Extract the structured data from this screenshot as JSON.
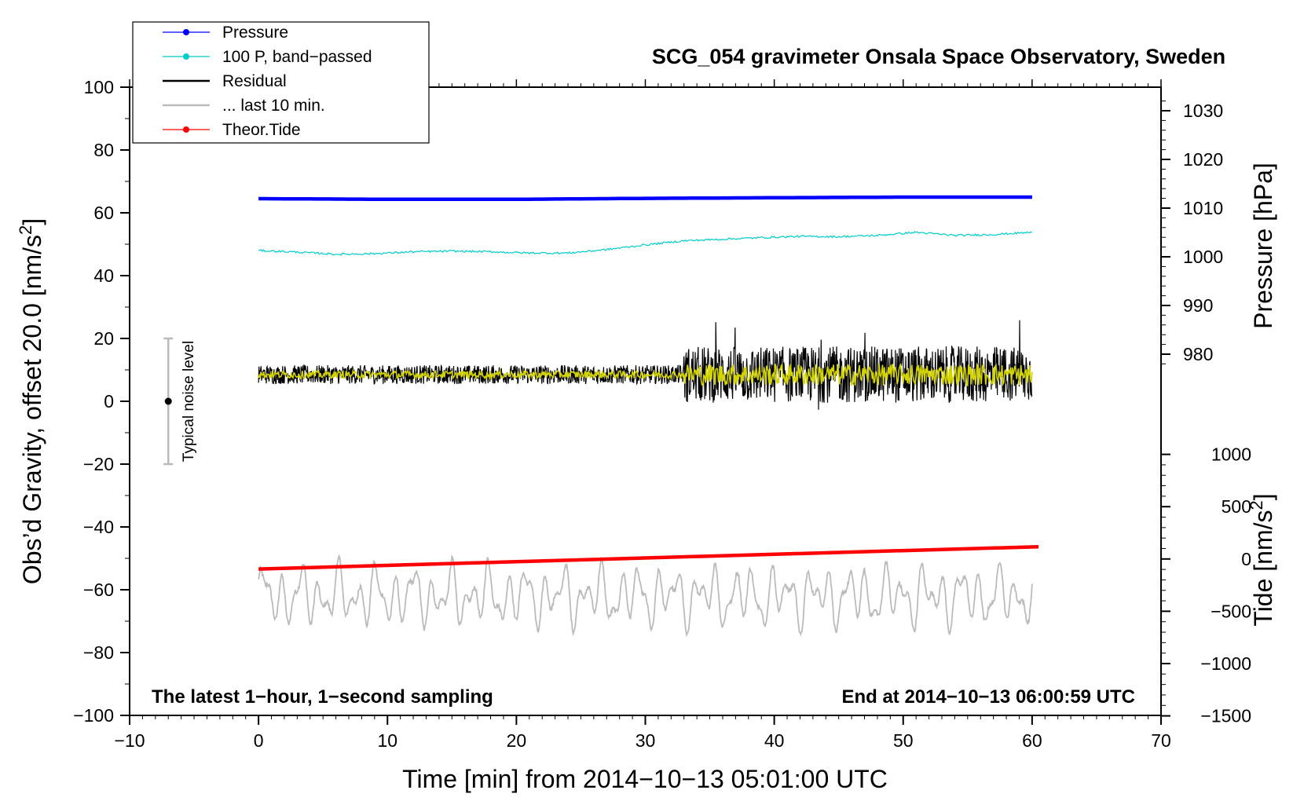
{
  "chart_data": {
    "type": "line",
    "title": "SCG_054 gravimeter Onsala Space Observatory, Sweden",
    "xlabel": "Time [min] from 2014−10−13 05:01:00 UTC",
    "ylabel_left": "Obs’d Gravity, offset 20.0 [nm/s",
    "ylabel_left_sup": "2",
    "ylabel_left_end": "]",
    "ylabel_pressure": "Pressure [hPa]",
    "ylabel_tide": "Tide [nm/s",
    "ylabel_tide_sup": "2",
    "ylabel_tide_end": "]",
    "xlim": [
      -10,
      70
    ],
    "ylim": [
      -100,
      100
    ],
    "x_ticks": [
      "−10",
      "0",
      "10",
      "20",
      "30",
      "40",
      "50",
      "60",
      "70"
    ],
    "x_tick_values": [
      -10,
      0,
      10,
      20,
      30,
      40,
      50,
      60,
      70
    ],
    "y_ticks": [
      "100",
      "80",
      "60",
      "40",
      "20",
      "0",
      "−20",
      "−40",
      "−60",
      "−80",
      "−100"
    ],
    "y_tick_values": [
      100,
      80,
      60,
      40,
      20,
      0,
      -20,
      -40,
      -60,
      -80,
      -100
    ],
    "pressure_axis": {
      "ticks": [
        "1030",
        "1020",
        "1010",
        "1000",
        "990",
        "980"
      ],
      "tick_values": [
        1030,
        1020,
        1010,
        1000,
        990,
        980
      ],
      "ref_value": 1000,
      "ref_gravity": 46,
      "gravity_per_unit": 1.55
    },
    "tide_axis": {
      "ticks": [
        "1000",
        "500",
        "0",
        "−500",
        "−1000",
        "−1500"
      ],
      "tick_values": [
        1000,
        500,
        0,
        -500,
        -1000,
        -1500
      ],
      "ref_value": 0,
      "ref_gravity": -50.2,
      "gravity_per_unit": 0.0333
    },
    "legend": [
      {
        "label": "Pressure",
        "color": "#0000ff",
        "marker": true
      },
      {
        "label": "100 P, band−passed",
        "color": "#00cccc",
        "marker": true
      },
      {
        "label": "Residual",
        "color": "#000000",
        "marker": false
      },
      {
        "label": "... last 10 min.",
        "color": "#bbbbbb",
        "marker": false
      },
      {
        "label": "Theor.Tide",
        "color": "#ff0000",
        "marker": true
      }
    ],
    "legend_position": "top-left",
    "series": [
      {
        "name": "Pressure",
        "color": "#0000ff",
        "x": [
          0,
          10,
          20,
          30,
          40,
          50,
          60
        ],
        "y": [
          64.5,
          64.3,
          64.3,
          64.6,
          64.8,
          65.0,
          65.0
        ]
      },
      {
        "name": "100 P, band-passed",
        "color": "#00cccc",
        "x": [
          0,
          3,
          6,
          9,
          12,
          15,
          18,
          21,
          24,
          27,
          30,
          33,
          36,
          39,
          42,
          45,
          48,
          51,
          54,
          57,
          60
        ],
        "y": [
          48,
          47.5,
          46.8,
          47,
          47.6,
          47.8,
          47.6,
          47.2,
          47.2,
          48.3,
          49.8,
          51.1,
          51.6,
          52.1,
          52.5,
          52.4,
          52.8,
          53.8,
          52.8,
          53.1,
          53.8
        ]
      },
      {
        "name": "Residual",
        "color": "#000000",
        "x_range": [
          0,
          60
        ],
        "baseline": 8.5,
        "amplitude_segments": [
          {
            "from": 0,
            "to": 33,
            "amp": 3
          },
          {
            "from": 33,
            "to": 60,
            "amp": 9
          }
        ]
      },
      {
        "name": "... last 10 min.",
        "color": "#bbbbbb",
        "x_range": [
          0,
          60
        ],
        "baseline": -62,
        "amplitude": 8
      },
      {
        "name": "Theor.Tide",
        "color": "#ff0000",
        "x": [
          0,
          60.5
        ],
        "y": [
          -53.4,
          -46.3
        ]
      }
    ],
    "noise_bar": {
      "label": "Typical noise level",
      "x": -7,
      "center": 0,
      "low": -20,
      "high": 20
    },
    "annotation_left": "The latest 1−hour, 1−second sampling",
    "annotation_right": "End at 2014−10−13 06:00:59 UTC",
    "grid": false
  }
}
